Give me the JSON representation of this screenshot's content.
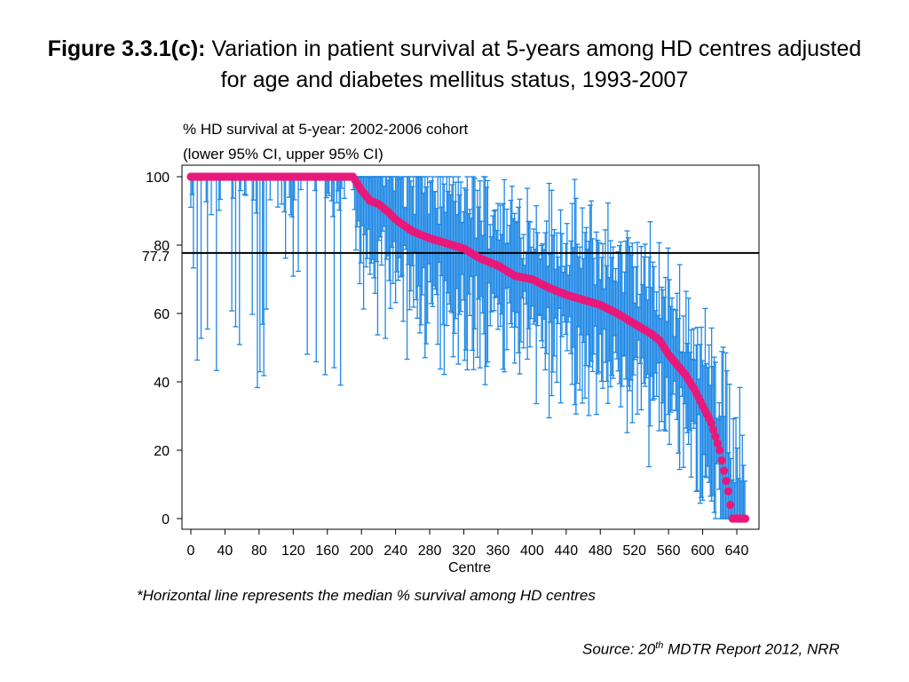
{
  "title": {
    "label": "Figure 3.3.1(c):",
    "text": "Variation in patient survival at 5-years among HD centres adjusted for age and diabetes mellitus status, 1993-2007"
  },
  "chart_header": {
    "line1": "% HD survival at 5-year: 2002-2006 cohort",
    "line2": "(lower 95% CI, upper 95% CI)"
  },
  "footnote": "*Horizontal line represents the median % survival among HD centres",
  "source": {
    "prefix": "Source: 20",
    "superscript": "th",
    "suffix": " MDTR Report 2012, NRR"
  },
  "colors": {
    "estimate_marker": "#e8197a",
    "ci_bars": "#1e88e5",
    "median_line": "#000000",
    "axis": "#000000"
  },
  "chart_data": {
    "type": "scatter",
    "subtype": "caterpillar plot with error bars",
    "xlabel": "Centre",
    "ylabel": "",
    "xlim": [
      -10,
      660
    ],
    "ylim": [
      -3,
      103
    ],
    "x_ticks": [
      0,
      40,
      80,
      120,
      160,
      200,
      240,
      280,
      320,
      360,
      400,
      440,
      480,
      520,
      560,
      600,
      640
    ],
    "y_ticks": [
      0,
      20,
      40,
      60,
      80,
      100
    ],
    "grid": false,
    "reference_line": {
      "y": 77.7,
      "label": "77.7"
    },
    "series": [
      {
        "x": [
          0,
          20,
          40,
          60,
          80,
          100,
          120,
          140,
          160,
          180,
          190,
          200,
          210,
          220,
          230,
          240,
          260,
          280,
          300,
          320,
          340,
          360,
          380,
          400,
          420,
          440,
          460,
          480,
          500,
          520,
          540,
          550,
          560,
          570,
          580,
          590,
          600,
          610,
          615,
          620,
          625,
          630,
          635,
          640,
          645,
          650
        ],
        "y": [
          100,
          100,
          100,
          100,
          100,
          100,
          100,
          100,
          100,
          100,
          100,
          96,
          93,
          92,
          90,
          87.5,
          84,
          82,
          80.5,
          79,
          76,
          74,
          71,
          70,
          67.5,
          65.5,
          64,
          62.5,
          60,
          57,
          54,
          52,
          48,
          45,
          42,
          38,
          33,
          28,
          24,
          20,
          14,
          8,
          0,
          0,
          0,
          0
        ]
      }
    ]
  }
}
